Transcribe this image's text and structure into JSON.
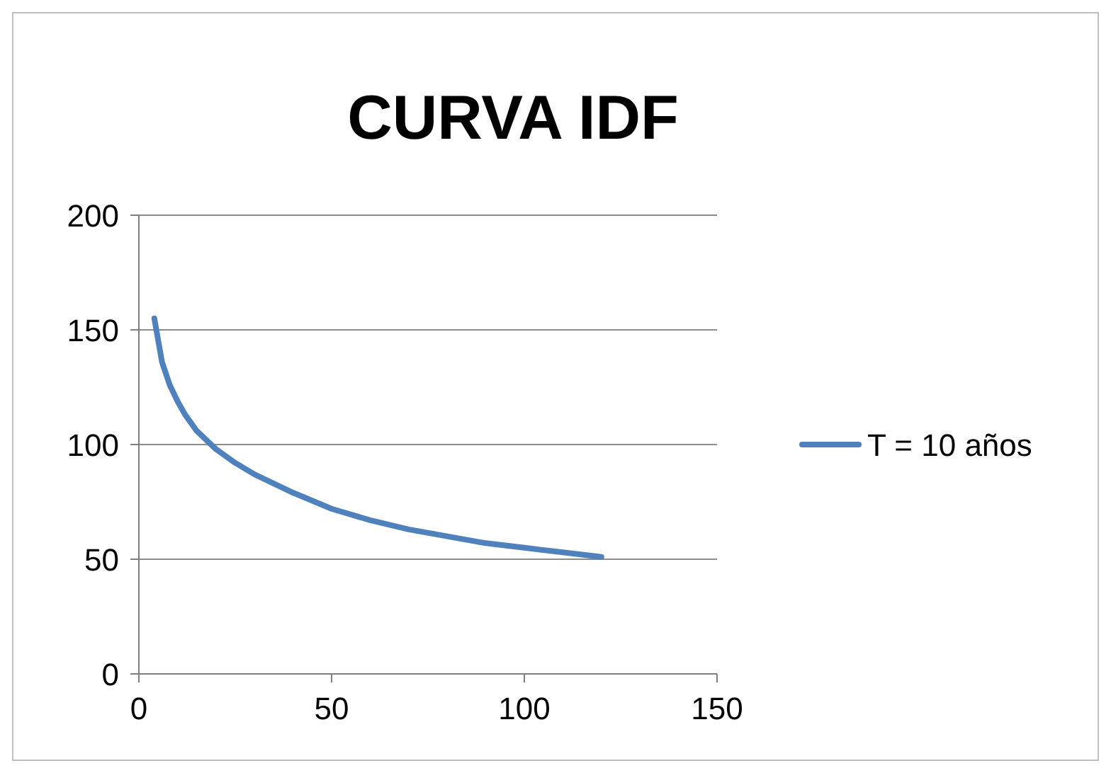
{
  "chart_data": {
    "type": "line",
    "title": "CURVA IDF",
    "x": [
      4,
      6,
      8,
      10,
      12,
      15,
      20,
      25,
      30,
      40,
      50,
      60,
      70,
      80,
      90,
      100,
      110,
      120
    ],
    "series": [
      {
        "name": "T = 10 años",
        "color": "#4f81bd",
        "values": [
          155,
          136,
          126,
          119,
          113,
          106,
          98,
          92,
          87,
          79,
          72,
          67,
          63,
          60,
          57,
          55,
          53,
          51
        ]
      }
    ],
    "xlim": [
      0,
      150
    ],
    "xticks": [
      0,
      50,
      100,
      150
    ],
    "ylim": [
      0,
      200
    ],
    "yticks": [
      0,
      50,
      100,
      150,
      200
    ],
    "grid": "y",
    "legend": "right",
    "marker": "none",
    "line_style": "solid"
  }
}
